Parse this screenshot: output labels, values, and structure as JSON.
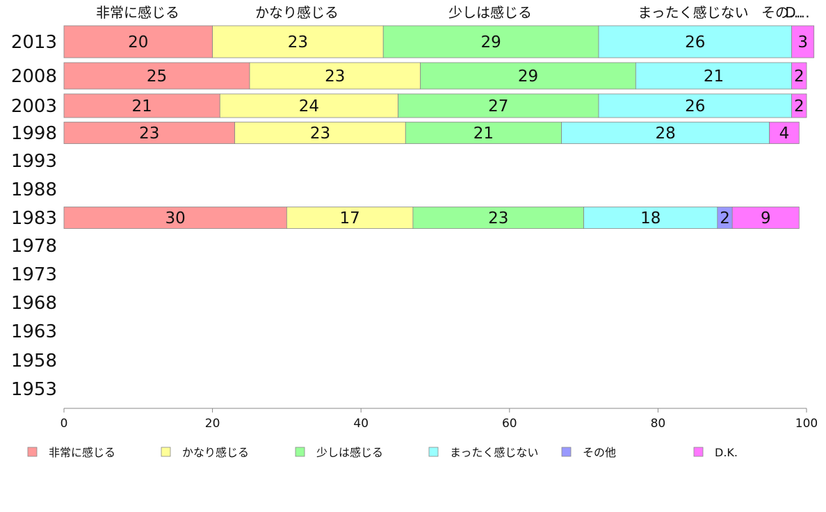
{
  "chart_data": {
    "type": "bar",
    "orientation": "horizontal",
    "stacked": true,
    "categories": [
      "2013",
      "2008",
      "2003",
      "1998",
      "1993",
      "1988",
      "1983",
      "1978",
      "1973",
      "1968",
      "1963",
      "1958",
      "1953"
    ],
    "series": [
      {
        "name": "非常に感じる",
        "color": "#ff9999",
        "values": [
          20,
          25,
          21,
          23,
          null,
          null,
          30,
          null,
          null,
          null,
          null,
          null,
          null
        ]
      },
      {
        "name": "かなり感じる",
        "color": "#ffff99",
        "values": [
          23,
          23,
          24,
          23,
          null,
          null,
          17,
          null,
          null,
          null,
          null,
          null,
          null
        ]
      },
      {
        "name": "少しは感じる",
        "color": "#99ff99",
        "values": [
          29,
          29,
          27,
          21,
          null,
          null,
          23,
          null,
          null,
          null,
          null,
          null,
          null
        ]
      },
      {
        "name": "まったく感じない",
        "color": "#99ffff",
        "values": [
          26,
          21,
          26,
          28,
          null,
          null,
          18,
          null,
          null,
          null,
          null,
          null,
          null
        ]
      },
      {
        "name": "その他",
        "color": "#9999ff",
        "values": [
          0,
          0,
          0,
          0,
          null,
          null,
          2,
          null,
          null,
          null,
          null,
          null,
          null
        ]
      },
      {
        "name": "D.K.",
        "color": "#ff77ff",
        "values": [
          3,
          2,
          2,
          4,
          null,
          null,
          9,
          null,
          null,
          null,
          null,
          null,
          null
        ]
      }
    ],
    "top_labels": [
      "非常に感じる",
      "かなり感じる",
      "少しは感じる",
      "まったく感じない",
      "その…",
      "D…"
    ],
    "xlim": [
      0,
      100
    ],
    "xticks": [
      0,
      20,
      40,
      60,
      80,
      100
    ],
    "xlabel": "",
    "ylabel": "",
    "grid": false,
    "legend_position": "bottom"
  }
}
